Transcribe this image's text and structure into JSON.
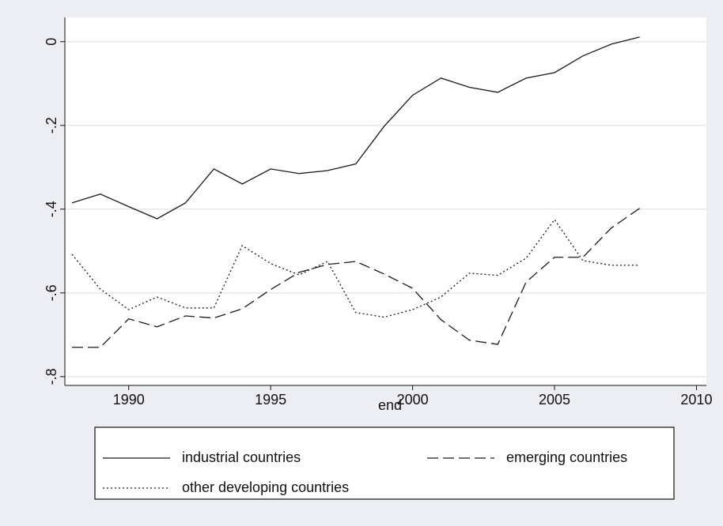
{
  "chart_data": {
    "type": "line",
    "x_label": "end",
    "x": [
      1988,
      1989,
      1990,
      1991,
      1992,
      1993,
      1994,
      1995,
      1996,
      1997,
      1998,
      1999,
      2000,
      2001,
      2002,
      2003,
      2004,
      2005,
      2006,
      2007,
      2008
    ],
    "series": [
      {
        "name": "industrial countries",
        "color": "#1a1a1a",
        "style": "solid",
        "values": [
          -0.385,
          -0.364,
          -0.394,
          -0.423,
          -0.385,
          -0.304,
          -0.34,
          -0.304,
          -0.315,
          -0.308,
          -0.292,
          -0.202,
          -0.128,
          -0.087,
          -0.109,
          -0.121,
          -0.087,
          -0.074,
          -0.034,
          -0.006,
          0.011
        ]
      },
      {
        "name": "emerging countries",
        "color": "#1a1a1a",
        "style": "dashed",
        "values": [
          -0.73,
          -0.73,
          -0.662,
          -0.681,
          -0.655,
          -0.66,
          -0.638,
          -0.592,
          -0.551,
          -0.532,
          -0.525,
          -0.555,
          -0.589,
          -0.664,
          -0.713,
          -0.723,
          -0.574,
          -0.515,
          -0.515,
          -0.445,
          -0.398
        ]
      },
      {
        "name": "other developing countries",
        "color": "#1a1a1a",
        "style": "dotted",
        "values": [
          -0.508,
          -0.591,
          -0.64,
          -0.61,
          -0.636,
          -0.636,
          -0.487,
          -0.53,
          -0.557,
          -0.525,
          -0.647,
          -0.658,
          -0.64,
          -0.61,
          -0.553,
          -0.558,
          -0.517,
          -0.425,
          -0.523,
          -0.534,
          -0.534
        ]
      }
    ],
    "xlim": [
      1987.75,
      2010.35
    ],
    "xticks": [
      1990,
      1995,
      2000,
      2005,
      2010
    ],
    "ylim": [
      -0.821,
      0.058
    ],
    "yticks": [
      0,
      {
        "value": -0.2,
        "label": "-.2"
      },
      {
        "value": -0.4,
        "label": "-.4"
      },
      {
        "value": -0.6,
        "label": "-.6"
      },
      {
        "value": -0.8,
        "label": "-.8"
      }
    ],
    "grid": true
  }
}
